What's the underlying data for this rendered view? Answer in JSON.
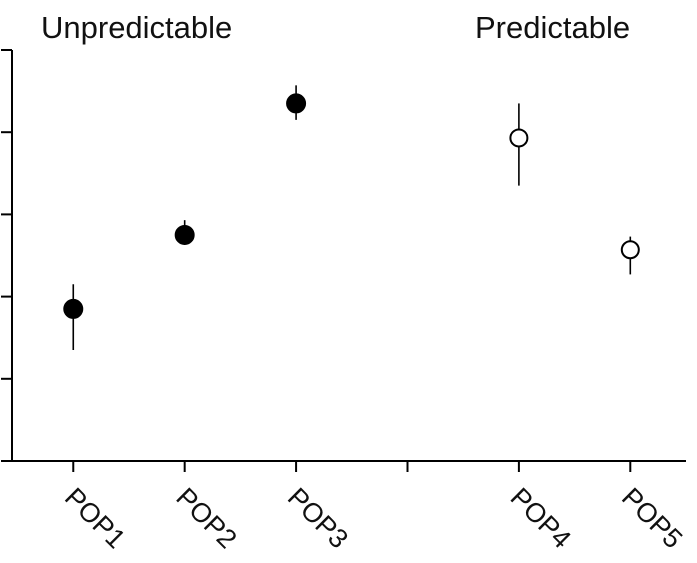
{
  "chart_data": {
    "type": "scatter",
    "title": "",
    "xlabel": "",
    "ylabel": "",
    "ylim": [
      0,
      5
    ],
    "y_tick_values": [
      0,
      1,
      2,
      3,
      4,
      5
    ],
    "y_tick_labels_shown": false,
    "grid": false,
    "legend": "none",
    "group_labels": [
      "Unpredictable",
      "Predictable"
    ],
    "categories": [
      "POP1",
      "POP2",
      "POP3",
      "POP4",
      "POP5"
    ],
    "x_positions": [
      1,
      2,
      3,
      5,
      6
    ],
    "x_axis_ticks": [
      1,
      2,
      3,
      4,
      5,
      6
    ],
    "xlim": [
      0.45,
      6.5
    ],
    "points": [
      {
        "category": "POP1",
        "group": "Unpredictable",
        "y": 1.85,
        "err_low": 1.35,
        "err_high": 2.15,
        "filled": true
      },
      {
        "category": "POP2",
        "group": "Unpredictable",
        "y": 2.75,
        "err_low": 2.63,
        "err_high": 2.93,
        "filled": true
      },
      {
        "category": "POP3",
        "group": "Unpredictable",
        "y": 4.35,
        "err_low": 4.15,
        "err_high": 4.57,
        "filled": true
      },
      {
        "category": "POP4",
        "group": "Predictable",
        "y": 3.93,
        "err_low": 3.35,
        "err_high": 4.35,
        "filled": false
      },
      {
        "category": "POP5",
        "group": "Predictable",
        "y": 2.57,
        "err_low": 2.27,
        "err_high": 2.73,
        "filled": false
      }
    ],
    "colors": {
      "filled": "#000000",
      "open": "#ffffff",
      "stroke": "#000000"
    }
  }
}
